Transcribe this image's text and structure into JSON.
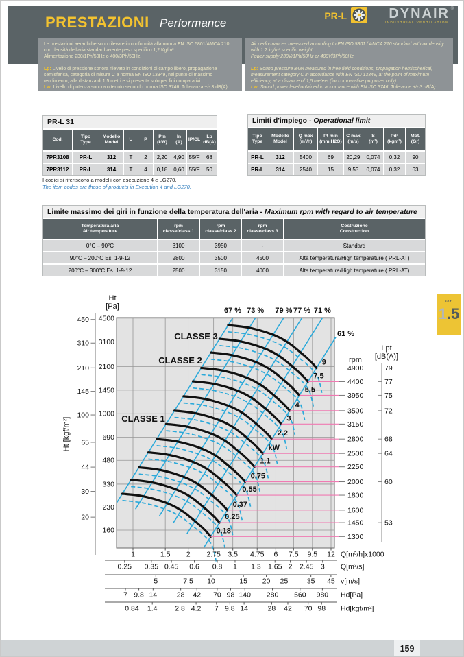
{
  "header": {
    "title_it": "PRESTAZIONI",
    "title_en": "Performance",
    "product": "PR-L",
    "brand": "DYNAIR",
    "reg": "®",
    "brand_sub": "INDUSTRIAL VENTILATION"
  },
  "notes_it": {
    "intro": "Le prestazioni aerauliche sono rilevate in conformità alla norma EN ISO 5801/AMCA 210 con densità dell'aria standard avente peso specifico 1,2 Kg/m³.\nAlimentazione 230/1Ph/50Hz o 400/3Ph/50Hz.",
    "lp_label": "Lp:",
    "lp_text": "Livello di pressione sonora rilevato in condizioni di campo libero, propagazione semisferica, categoria di misura C a norma EN ISO 13349, nel punto di massimo rendimento, alla distanza di 1,5 metri e si presenta solo per fini comparativi.",
    "lw_label": "Lw:",
    "lw_text": "Livello di potenza sonora ottenuto secondo norma ISO 3746. Tolleranza +/- 3 dB(A)."
  },
  "notes_en": {
    "intro": "Air performances measured according to EN ISO 5801 / AMCA 210 standard with air density with 1.2 kg/m³ specific weight.\nPower supply 230V/1Ph/50Hz or 400V/3Ph/50Hz.",
    "lp_label": "Lp:",
    "lp_text": "Sound pressure level measured in free field conditions, propagation hemispherical, measurement category C in accordance with EN ISO 13349, at the point of maximum efficiency, at a distance of 1,5 meters (for comparative purposes only).",
    "lw_label": "Lw:",
    "lw_text": "Sound power level obtained in accordance with EN ISO 3746. Tolerance +/- 3 dB(A)."
  },
  "table1": {
    "title": "PR-L 31",
    "headers": [
      "Cod.",
      "Tipo\nType",
      "Modello\nModel",
      "U",
      "P",
      "Pm\n(kW)",
      "In\n(A)",
      "IP/CL",
      "Lp\ndB(A)"
    ],
    "rows": [
      [
        "7PR3108",
        "PR-L",
        "312",
        "T",
        "2",
        "2,20",
        "4,90",
        "55/F",
        "68"
      ],
      [
        "7PR3112",
        "PR-L",
        "314",
        "T",
        "4",
        "0,18",
        "0,60",
        "55/F",
        "50"
      ]
    ],
    "caption_it": "I codici si riferiscono a modelli con esecuzione 4 e LG270.",
    "caption_en": "The item codes are those of products in Execution 4 and LG270."
  },
  "table2": {
    "title_it": "Limiti d'impiego - ",
    "title_en": "Operational limit",
    "headers": [
      "Tipo\nType",
      "Modello\nModel",
      "Q max\n(m³/h)",
      "Pt min\n(mm H2O)",
      "C max\n(m/s)",
      "S\n(m²)",
      "Pd²\n(kgm²)",
      "Mot.\n(Gr)"
    ],
    "rows": [
      [
        "PR-L",
        "312",
        "5400",
        "69",
        "20,29",
        "0,074",
        "0,32",
        "90"
      ],
      [
        "PR-L",
        "314",
        "2540",
        "15",
        "9,53",
        "0,074",
        "0,32",
        "63"
      ]
    ]
  },
  "table3": {
    "title_it": "Limite massimo dei giri in funzione della temperatura dell'aria - ",
    "title_en": "Maximum rpm with regard to air temperature",
    "headers": [
      "Temperatura aria\nAir temperature",
      "rpm\nclasse/class 1",
      "rpm\nclasse/class 2",
      "rpm\nclasse/class 3",
      "Costruzione\nConstruction"
    ],
    "rows": [
      [
        "0°C – 90°C",
        "3100",
        "3950",
        "-",
        "Standard"
      ],
      [
        "90°C – 200°C Es. 1-9-12",
        "2800",
        "3500",
        "4500",
        "Alta temperatura/High temperature ( PRL-AT)"
      ],
      [
        "200°C – 300°C Es. 1-9-12",
        "2500",
        "3150",
        "4000",
        "Alta temperatura/High temperature ( PRL-AT)"
      ]
    ]
  },
  "section_badge": {
    "label": "sez.",
    "value": "1.5"
  },
  "page_number": "159",
  "chart_data": {
    "type": "line",
    "description": "Fan performance curves, log-log scales",
    "x_axis": {
      "label": "Q[m³/h]x1000",
      "scale": "log",
      "ticks": [
        1,
        1.5,
        2,
        2.75,
        3.5,
        4.75,
        6,
        7.5,
        9.5,
        12
      ]
    },
    "y_axis": {
      "label": "Ht [Pa]",
      "scale": "log",
      "ticks": [
        4500,
        3100,
        2100,
        1450,
        1000,
        690,
        480,
        330,
        230,
        160
      ]
    },
    "y_axis2": {
      "label": "Ht [kgf/m²]",
      "ticks": [
        450,
        310,
        210,
        145,
        100,
        65,
        44,
        30,
        20
      ]
    },
    "x_axis2": {
      "label": "Q[m³/s]",
      "ticks": [
        0.25,
        0.35,
        0.45,
        0.6,
        0.8,
        1,
        1.3,
        1.65,
        2,
        2.45,
        3
      ]
    },
    "x_axis3": {
      "label": "v[m/s]",
      "ticks": [
        5,
        7.5,
        10,
        15,
        20,
        25,
        35,
        45
      ]
    },
    "x_axis4": {
      "label": "Hd[Pa]",
      "ticks": [
        7,
        9.8,
        14,
        28,
        42,
        70,
        98,
        140,
        280,
        560,
        980
      ]
    },
    "x_axis5": {
      "label": "Hd[kgf/m²]",
      "ticks": [
        0.84,
        1.4,
        2.8,
        4.2,
        7,
        9.8,
        14,
        28,
        42,
        70,
        98
      ]
    },
    "rpm_axis_label": "rpm",
    "lpt_axis_label": "Lpt\n[dB(A)]",
    "curves": [
      {
        "rpm": 4900,
        "kw": "9"
      },
      {
        "rpm": 4400,
        "kw": "7.5"
      },
      {
        "rpm": 3950,
        "kw": "5.5"
      },
      {
        "rpm": 3500,
        "kw": "4"
      },
      {
        "rpm": 3150,
        "kw": "3"
      },
      {
        "rpm": 2800,
        "kw": "2.2"
      },
      {
        "rpm": 2500,
        "kw": "kW"
      },
      {
        "rpm": 2250,
        "kw": "1.1"
      },
      {
        "rpm": 2000,
        "kw": "0.75"
      },
      {
        "rpm": 1800,
        "kw": "0.55"
      },
      {
        "rpm": 1600,
        "kw": "0.37"
      },
      {
        "rpm": 1450,
        "kw": "0.25"
      },
      {
        "rpm": 1300,
        "kw": "0.18"
      }
    ],
    "lpt_values": [
      {
        "rpm": 4900,
        "db": 79
      },
      {
        "rpm": 4400,
        "db": 77
      },
      {
        "rpm": 3950,
        "db": 75
      },
      {
        "rpm": 3500,
        "db": 72
      },
      {
        "rpm": 2800,
        "db": 68
      },
      {
        "rpm": 2500,
        "db": 64
      },
      {
        "rpm": 2000,
        "db": 60
      },
      {
        "rpm": 1450,
        "db": 53
      }
    ],
    "efficiency_labels": [
      {
        "label": "67 %",
        "t": 0
      },
      {
        "label": "73 %",
        "t": 0.2
      },
      {
        "label": "79 %",
        "t": 0.4
      },
      {
        "label": "77 %",
        "t": 0.6
      },
      {
        "label": "71 %",
        "t": 0.8
      },
      {
        "label": "61 %",
        "t": 1.0
      }
    ],
    "classe_labels": [
      "CLASSE 1",
      "CLASSE 2",
      "CLASSE 3"
    ],
    "base_curve": {
      "rpm_ref": 4900,
      "q_max_thousand_m3h": 10.0,
      "h_max_pa": 4030,
      "q_norm": [
        0.33,
        0.43,
        0.58,
        0.69,
        0.82,
        1.0
      ],
      "h_norm": [
        1.0,
        0.96,
        0.86,
        0.77,
        0.65,
        0.51
      ]
    },
    "colors": {
      "curve": "#111111",
      "efficiency_line": "#2aa9da",
      "power_dashed": "#2aa9da",
      "rpm_line": "#f07ab2",
      "plot_bg": "#e3e3e3",
      "grid": "#969696",
      "border": "#6a6a6a"
    }
  }
}
